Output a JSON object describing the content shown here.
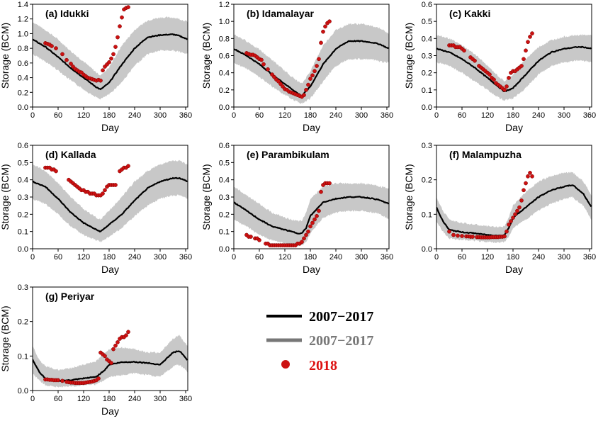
{
  "colors": {
    "mean": "#000000",
    "range": "#c8c8c8",
    "obs": "#cc1111",
    "legend_range_text": "#777777",
    "legend_obs_text": "#dd1111"
  },
  "legend": [
    {
      "label": "2007−2017"
    },
    {
      "label": "2007−2017"
    },
    {
      "label": "2018"
    }
  ],
  "chart_data": [
    {
      "type": "line",
      "title": "(a) Idukki",
      "xlabel": "Day",
      "ylabel": "Storage (BCM)",
      "xlim": [
        0,
        365
      ],
      "ylim": [
        0,
        1.4
      ],
      "xticks": [
        "0",
        "60",
        "120",
        "180",
        "240",
        "300",
        "360"
      ],
      "yticks": [
        "0.0",
        "0.2",
        "0.4",
        "0.6",
        "0.8",
        "1.0",
        "1.2",
        "1.4"
      ],
      "mean": {
        "x": [
          0,
          30,
          60,
          90,
          120,
          150,
          160,
          180,
          210,
          240,
          270,
          300,
          330,
          345,
          365
        ],
        "y": [
          0.92,
          0.82,
          0.68,
          0.53,
          0.4,
          0.27,
          0.24,
          0.33,
          0.58,
          0.8,
          0.95,
          0.98,
          0.99,
          0.97,
          0.92
        ]
      },
      "band_upper": [
        1.16,
        1.05,
        0.92,
        0.76,
        0.62,
        0.47,
        0.43,
        0.54,
        0.84,
        1.05,
        1.18,
        1.22,
        1.22,
        1.2,
        1.16
      ],
      "band_lower": [
        0.72,
        0.62,
        0.5,
        0.36,
        0.24,
        0.13,
        0.11,
        0.17,
        0.34,
        0.56,
        0.72,
        0.77,
        0.77,
        0.75,
        0.72
      ],
      "obs2018": {
        "x": [
          30,
          35,
          40,
          45,
          55,
          70,
          80,
          90,
          95,
          100,
          105,
          110,
          115,
          120,
          125,
          130,
          135,
          140,
          145,
          150,
          155,
          160,
          165,
          170,
          175,
          180,
          185,
          190,
          195,
          200,
          205,
          210,
          215,
          220,
          225
        ],
        "y": [
          0.87,
          0.86,
          0.85,
          0.83,
          0.8,
          0.72,
          0.64,
          0.59,
          0.55,
          0.52,
          0.5,
          0.48,
          0.47,
          0.44,
          0.42,
          0.4,
          0.39,
          0.38,
          0.37,
          0.36,
          0.37,
          0.36,
          0.5,
          0.55,
          0.58,
          0.61,
          0.66,
          0.72,
          0.82,
          0.95,
          1.1,
          1.22,
          1.33,
          1.35,
          1.36
        ]
      }
    },
    {
      "type": "line",
      "title": "(b) Idamalayar",
      "xlabel": "Day",
      "ylabel": "Storage (BCM)",
      "xlim": [
        0,
        365
      ],
      "ylim": [
        0,
        1.2
      ],
      "xticks": [
        "0",
        "60",
        "120",
        "180",
        "240",
        "300",
        "360"
      ],
      "yticks": [
        "0.0",
        "0.2",
        "0.4",
        "0.6",
        "0.8",
        "1.0",
        "1.2"
      ],
      "mean": {
        "x": [
          0,
          30,
          60,
          90,
          120,
          150,
          160,
          180,
          210,
          240,
          270,
          300,
          330,
          345,
          365
        ],
        "y": [
          0.68,
          0.6,
          0.5,
          0.38,
          0.27,
          0.16,
          0.13,
          0.24,
          0.5,
          0.68,
          0.77,
          0.77,
          0.75,
          0.73,
          0.68
        ]
      },
      "band_upper": [
        0.85,
        0.77,
        0.67,
        0.55,
        0.42,
        0.3,
        0.27,
        0.42,
        0.72,
        0.9,
        0.97,
        0.97,
        0.94,
        0.92,
        0.85
      ],
      "band_lower": [
        0.52,
        0.45,
        0.35,
        0.24,
        0.14,
        0.06,
        0.04,
        0.1,
        0.3,
        0.48,
        0.56,
        0.56,
        0.55,
        0.53,
        0.52
      ],
      "obs2018": {
        "x": [
          30,
          35,
          40,
          45,
          50,
          55,
          60,
          65,
          70,
          80,
          90,
          95,
          100,
          105,
          110,
          115,
          120,
          125,
          130,
          135,
          140,
          145,
          150,
          155,
          160,
          165,
          170,
          175,
          180,
          185,
          190,
          195,
          200,
          205,
          210,
          215,
          220,
          225
        ],
        "y": [
          0.63,
          0.62,
          0.61,
          0.61,
          0.6,
          0.58,
          0.56,
          0.55,
          0.5,
          0.44,
          0.38,
          0.35,
          0.32,
          0.3,
          0.27,
          0.24,
          0.21,
          0.2,
          0.18,
          0.17,
          0.16,
          0.15,
          0.14,
          0.13,
          0.12,
          0.14,
          0.2,
          0.26,
          0.33,
          0.37,
          0.42,
          0.48,
          0.56,
          0.75,
          0.88,
          0.94,
          0.98,
          1.0
        ]
      }
    },
    {
      "type": "line",
      "title": "(c) Kakki",
      "xlabel": "Day",
      "ylabel": "Storage (BCM)",
      "xlim": [
        0,
        365
      ],
      "ylim": [
        0,
        0.6
      ],
      "xticks": [
        "0",
        "60",
        "120",
        "180",
        "240",
        "300",
        "360"
      ],
      "yticks": [
        "0.0",
        "0.1",
        "0.2",
        "0.3",
        "0.4",
        "0.5",
        "0.6"
      ],
      "mean": {
        "x": [
          0,
          30,
          60,
          90,
          120,
          150,
          160,
          180,
          210,
          240,
          270,
          300,
          330,
          345,
          365
        ],
        "y": [
          0.34,
          0.32,
          0.28,
          0.23,
          0.17,
          0.11,
          0.09,
          0.11,
          0.19,
          0.27,
          0.32,
          0.34,
          0.35,
          0.35,
          0.34
        ]
      },
      "band_upper": [
        0.42,
        0.4,
        0.36,
        0.31,
        0.24,
        0.17,
        0.15,
        0.19,
        0.28,
        0.35,
        0.39,
        0.41,
        0.42,
        0.42,
        0.42
      ],
      "band_lower": [
        0.26,
        0.24,
        0.2,
        0.15,
        0.1,
        0.05,
        0.04,
        0.05,
        0.11,
        0.19,
        0.24,
        0.26,
        0.27,
        0.27,
        0.26
      ],
      "obs2018": {
        "x": [
          30,
          35,
          40,
          45,
          50,
          55,
          60,
          65,
          80,
          85,
          90,
          100,
          105,
          110,
          115,
          120,
          125,
          130,
          135,
          140,
          145,
          150,
          155,
          160,
          165,
          170,
          175,
          180,
          185,
          190,
          195,
          200,
          205,
          210,
          215,
          220,
          225
        ],
        "y": [
          0.36,
          0.36,
          0.36,
          0.35,
          0.35,
          0.35,
          0.34,
          0.33,
          0.29,
          0.28,
          0.27,
          0.24,
          0.23,
          0.22,
          0.21,
          0.2,
          0.19,
          0.17,
          0.16,
          0.14,
          0.13,
          0.12,
          0.11,
          0.1,
          0.12,
          0.17,
          0.2,
          0.21,
          0.21,
          0.22,
          0.23,
          0.24,
          0.28,
          0.33,
          0.38,
          0.41,
          0.43
        ]
      }
    },
    {
      "type": "line",
      "title": "(d) Kallada",
      "xlabel": "Day",
      "ylabel": "Storage (BCM)",
      "xlim": [
        0,
        365
      ],
      "ylim": [
        0,
        0.6
      ],
      "xticks": [
        "0",
        "60",
        "120",
        "180",
        "240",
        "300",
        "360"
      ],
      "yticks": [
        "0.0",
        "0.1",
        "0.2",
        "0.3",
        "0.4",
        "0.5",
        "0.6"
      ],
      "mean": {
        "x": [
          0,
          30,
          60,
          90,
          120,
          150,
          160,
          180,
          210,
          240,
          270,
          300,
          330,
          345,
          365
        ],
        "y": [
          0.39,
          0.36,
          0.29,
          0.21,
          0.15,
          0.11,
          0.1,
          0.14,
          0.2,
          0.28,
          0.35,
          0.39,
          0.41,
          0.41,
          0.39
        ]
      },
      "band_upper": [
        0.49,
        0.45,
        0.38,
        0.3,
        0.23,
        0.18,
        0.17,
        0.22,
        0.3,
        0.39,
        0.45,
        0.49,
        0.51,
        0.51,
        0.49
      ],
      "band_lower": [
        0.29,
        0.26,
        0.2,
        0.13,
        0.08,
        0.05,
        0.04,
        0.07,
        0.12,
        0.19,
        0.25,
        0.29,
        0.31,
        0.31,
        0.29
      ],
      "obs2018": {
        "x": [
          30,
          35,
          40,
          45,
          50,
          55,
          85,
          90,
          95,
          100,
          105,
          110,
          115,
          120,
          125,
          130,
          135,
          140,
          145,
          150,
          155,
          160,
          165,
          170,
          175,
          180,
          185,
          190,
          195,
          205,
          210,
          215,
          220,
          225
        ],
        "y": [
          0.47,
          0.47,
          0.47,
          0.46,
          0.46,
          0.45,
          0.4,
          0.39,
          0.38,
          0.37,
          0.36,
          0.35,
          0.34,
          0.34,
          0.33,
          0.33,
          0.32,
          0.32,
          0.32,
          0.31,
          0.31,
          0.31,
          0.32,
          0.34,
          0.36,
          0.37,
          0.37,
          0.37,
          0.37,
          0.45,
          0.46,
          0.47,
          0.47,
          0.48
        ]
      }
    },
    {
      "type": "line",
      "title": "(e) Parambikulam",
      "xlabel": "Day",
      "ylabel": "Storage (BCM)",
      "xlim": [
        0,
        365
      ],
      "ylim": [
        0,
        0.6
      ],
      "xticks": [
        "0",
        "60",
        "120",
        "180",
        "240",
        "300",
        "360"
      ],
      "yticks": [
        "0.0",
        "0.1",
        "0.2",
        "0.3",
        "0.4",
        "0.5",
        "0.6"
      ],
      "mean": {
        "x": [
          0,
          30,
          60,
          90,
          120,
          150,
          160,
          170,
          180,
          210,
          240,
          270,
          300,
          330,
          345,
          365
        ],
        "y": [
          0.27,
          0.22,
          0.17,
          0.13,
          0.11,
          0.09,
          0.09,
          0.12,
          0.19,
          0.27,
          0.29,
          0.3,
          0.3,
          0.29,
          0.28,
          0.26
        ]
      },
      "band_upper": [
        0.36,
        0.31,
        0.26,
        0.21,
        0.18,
        0.16,
        0.16,
        0.21,
        0.29,
        0.36,
        0.38,
        0.38,
        0.38,
        0.37,
        0.36,
        0.35
      ],
      "band_lower": [
        0.17,
        0.13,
        0.08,
        0.05,
        0.03,
        0.02,
        0.02,
        0.04,
        0.09,
        0.18,
        0.21,
        0.22,
        0.22,
        0.21,
        0.2,
        0.17
      ],
      "obs2018": {
        "x": [
          30,
          35,
          40,
          50,
          55,
          60,
          75,
          80,
          85,
          90,
          95,
          100,
          105,
          110,
          115,
          120,
          125,
          130,
          135,
          140,
          145,
          150,
          155,
          160,
          165,
          170,
          175,
          180,
          185,
          190,
          195,
          200,
          205,
          210,
          215,
          220,
          225
        ],
        "y": [
          0.08,
          0.07,
          0.07,
          0.06,
          0.06,
          0.05,
          0.03,
          0.03,
          0.02,
          0.02,
          0.02,
          0.02,
          0.02,
          0.02,
          0.02,
          0.02,
          0.02,
          0.02,
          0.02,
          0.02,
          0.02,
          0.03,
          0.03,
          0.04,
          0.06,
          0.08,
          0.1,
          0.13,
          0.15,
          0.17,
          0.19,
          0.22,
          0.33,
          0.37,
          0.38,
          0.38,
          0.38
        ]
      }
    },
    {
      "type": "line",
      "title": "(f) Malampuzha",
      "xlabel": "Day",
      "ylabel": "Storage (BCM)",
      "xlim": [
        0,
        365
      ],
      "ylim": [
        0,
        0.3
      ],
      "xticks": [
        "0",
        "60",
        "120",
        "180",
        "240",
        "300",
        "360"
      ],
      "yticks": [
        "0.0",
        "0.1",
        "0.2",
        "0.3"
      ],
      "mean": {
        "x": [
          0,
          15,
          30,
          60,
          90,
          120,
          150,
          160,
          170,
          180,
          210,
          240,
          270,
          300,
          320,
          330,
          345,
          360,
          365
        ],
        "y": [
          0.12,
          0.08,
          0.055,
          0.048,
          0.045,
          0.04,
          0.038,
          0.04,
          0.06,
          0.09,
          0.12,
          0.15,
          0.17,
          0.18,
          0.185,
          0.175,
          0.16,
          0.13,
          0.12
        ]
      },
      "band_upper": [
        0.15,
        0.11,
        0.085,
        0.075,
        0.07,
        0.065,
        0.063,
        0.066,
        0.09,
        0.125,
        0.165,
        0.195,
        0.21,
        0.22,
        0.222,
        0.212,
        0.195,
        0.165,
        0.15
      ],
      "band_lower": [
        0.08,
        0.05,
        0.03,
        0.026,
        0.024,
        0.02,
        0.018,
        0.02,
        0.035,
        0.06,
        0.085,
        0.11,
        0.13,
        0.145,
        0.15,
        0.14,
        0.125,
        0.095,
        0.08
      ],
      "obs2018": {
        "x": [
          30,
          40,
          50,
          60,
          70,
          75,
          80,
          85,
          95,
          100,
          105,
          110,
          115,
          120,
          125,
          130,
          135,
          140,
          145,
          150,
          155,
          160,
          165,
          170,
          175,
          180,
          185,
          190,
          195,
          200,
          205,
          210,
          215,
          220,
          225
        ],
        "y": [
          0.05,
          0.04,
          0.038,
          0.037,
          0.036,
          0.036,
          0.035,
          0.035,
          0.034,
          0.034,
          0.033,
          0.033,
          0.033,
          0.033,
          0.033,
          0.034,
          0.034,
          0.034,
          0.034,
          0.035,
          0.035,
          0.036,
          0.05,
          0.07,
          0.08,
          0.09,
          0.1,
          0.11,
          0.12,
          0.14,
          0.17,
          0.19,
          0.21,
          0.22,
          0.21
        ]
      }
    },
    {
      "type": "line",
      "title": "(g) Periyar",
      "xlabel": "Day",
      "ylabel": "Storage (BCM)",
      "xlim": [
        0,
        365
      ],
      "ylim": [
        0,
        0.3
      ],
      "xticks": [
        "0",
        "60",
        "120",
        "180",
        "240",
        "300",
        "360"
      ],
      "yticks": [
        "0.0",
        "0.1",
        "0.2",
        "0.3"
      ],
      "mean": {
        "x": [
          0,
          15,
          30,
          60,
          90,
          120,
          150,
          170,
          180,
          210,
          240,
          270,
          300,
          330,
          345,
          360,
          365
        ],
        "y": [
          0.09,
          0.055,
          0.035,
          0.028,
          0.03,
          0.035,
          0.04,
          0.06,
          0.075,
          0.082,
          0.083,
          0.08,
          0.075,
          0.11,
          0.115,
          0.095,
          0.085
        ]
      },
      "band_upper": [
        0.13,
        0.09,
        0.07,
        0.06,
        0.065,
        0.075,
        0.085,
        0.11,
        0.12,
        0.125,
        0.12,
        0.11,
        0.11,
        0.15,
        0.16,
        0.135,
        0.13
      ],
      "band_lower": [
        0.05,
        0.03,
        0.015,
        0.01,
        0.012,
        0.015,
        0.018,
        0.03,
        0.04,
        0.045,
        0.05,
        0.045,
        0.04,
        0.07,
        0.075,
        0.06,
        0.05
      ],
      "obs2018": {
        "x": [
          30,
          35,
          40,
          45,
          50,
          55,
          60,
          70,
          80,
          85,
          90,
          95,
          100,
          105,
          110,
          115,
          120,
          125,
          130,
          135,
          140,
          145,
          150,
          155,
          160,
          165,
          170,
          175,
          180,
          185,
          190,
          195,
          200,
          205,
          210,
          215,
          220,
          225
        ],
        "y": [
          0.032,
          0.032,
          0.031,
          0.031,
          0.03,
          0.03,
          0.03,
          0.028,
          0.025,
          0.024,
          0.023,
          0.023,
          0.022,
          0.022,
          0.022,
          0.022,
          0.022,
          0.023,
          0.024,
          0.025,
          0.026,
          0.028,
          0.03,
          0.035,
          0.11,
          0.105,
          0.1,
          0.09,
          0.085,
          0.08,
          0.12,
          0.13,
          0.14,
          0.15,
          0.155,
          0.155,
          0.16,
          0.17
        ]
      }
    }
  ]
}
